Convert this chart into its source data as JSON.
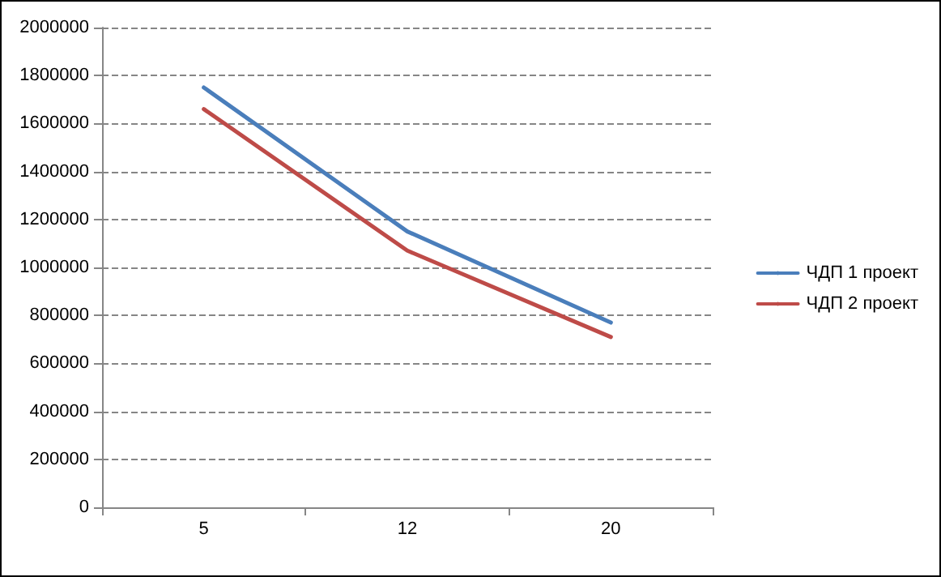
{
  "chart_data": {
    "type": "line",
    "categories": [
      "5",
      "12",
      "20"
    ],
    "series": [
      {
        "name": "ЧДП 1 проект",
        "color": "#4a7ebb",
        "values": [
          1750000,
          1150000,
          770000
        ]
      },
      {
        "name": "ЧДП 2 проект",
        "color": "#be4b48",
        "values": [
          1660000,
          1070000,
          710000
        ]
      }
    ],
    "ylim": [
      0,
      2000000
    ],
    "yticks": [
      0,
      200000,
      400000,
      600000,
      800000,
      1000000,
      1200000,
      1400000,
      1600000,
      1800000,
      2000000
    ],
    "grid": "y",
    "legend": "right",
    "marker": "none"
  }
}
